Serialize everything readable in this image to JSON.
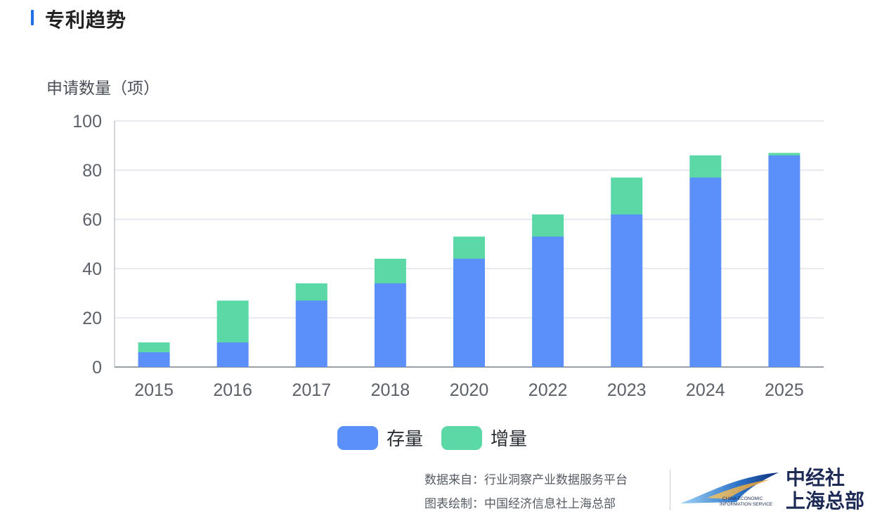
{
  "header": {
    "title": "专利趋势"
  },
  "chart_data": {
    "type": "bar",
    "stacked": true,
    "ylabel": "申请数量（项）",
    "ylim": [
      0,
      100
    ],
    "yticks": [
      0,
      20,
      40,
      60,
      80,
      100
    ],
    "grid": true,
    "legend_position": "bottom-center",
    "categories": [
      "2015",
      "2016",
      "2017",
      "2018",
      "2020",
      "2022",
      "2023",
      "2024",
      "2025"
    ],
    "series": [
      {
        "name": "存量",
        "color": "#5b8ff9",
        "values": [
          6,
          10,
          27,
          34,
          44,
          53,
          62,
          77,
          86
        ]
      },
      {
        "name": "增量",
        "color": "#5ad8a6",
        "values": [
          4,
          17,
          7,
          10,
          9,
          9,
          15,
          9,
          1
        ]
      }
    ]
  },
  "footer": {
    "source": "数据来自：行业洞察产业数据服务平台",
    "credit": "图表绘制：中国经济信息社上海总部",
    "logo_en_line1": "CHINA ECONOMIC",
    "logo_en_line2": "INFORMATION SERVICE",
    "logo_cn_line1": "中经社",
    "logo_cn_line2": "上海总部"
  }
}
